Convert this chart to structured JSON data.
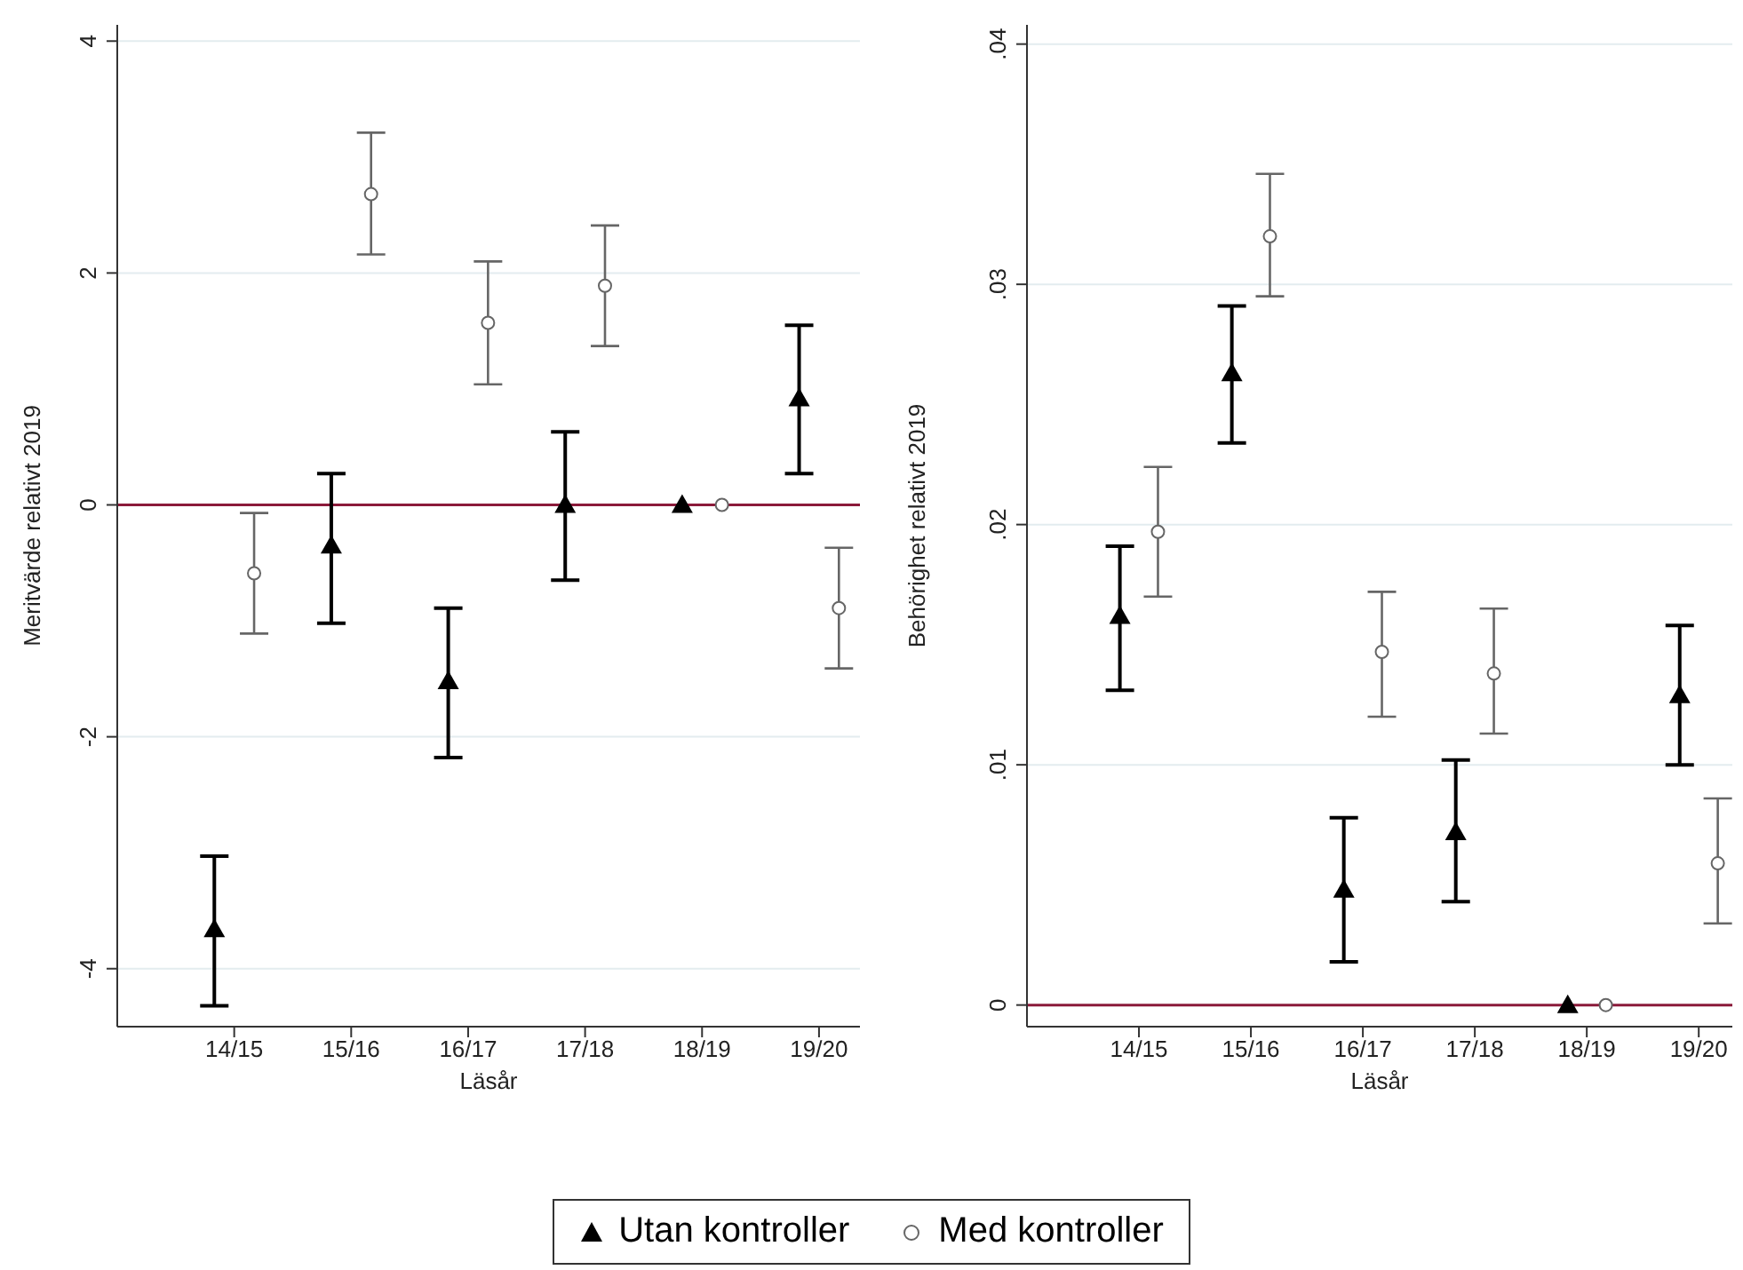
{
  "chart_data": [
    {
      "type": "scatter",
      "xlabel": "Läsår",
      "ylabel": "Meritvärde relativt 2019",
      "categories": [
        "14/15",
        "15/16",
        "16/17",
        "17/18",
        "18/19",
        "19/20"
      ],
      "ylim": [
        -4.5,
        4.14
      ],
      "yticks": [
        -4,
        -2,
        0,
        2,
        4
      ],
      "grid": "y",
      "legend": "bottom",
      "ref_lines": [
        {
          "axis": "y",
          "value": 0,
          "color": "#8b1a3a"
        }
      ],
      "series": [
        {
          "name": "Utan kontroller",
          "color": "#000000",
          "marker": "triangle",
          "values": [
            -3.66,
            -0.35,
            -1.52,
            0,
            0,
            0.92
          ],
          "errors": [
            [
              -4.32,
              -3.03
            ],
            [
              -1.02,
              0.27
            ],
            [
              -2.18,
              -0.89
            ],
            [
              -0.65,
              0.63
            ],
            null,
            [
              0.27,
              1.55
            ]
          ]
        },
        {
          "name": "Med kontroller",
          "color": "#666666",
          "marker": "circle",
          "values": [
            -0.59,
            2.68,
            1.57,
            1.89,
            0,
            -0.89
          ],
          "errors": [
            [
              -1.11,
              -0.07
            ],
            [
              2.16,
              3.21
            ],
            [
              1.04,
              2.1
            ],
            [
              1.37,
              2.41
            ],
            null,
            [
              -1.41,
              -0.37
            ]
          ]
        }
      ]
    },
    {
      "type": "scatter",
      "xlabel": "Läsår",
      "ylabel": "Behörighet relativt 2019",
      "categories": [
        "14/15",
        "15/16",
        "16/17",
        "17/18",
        "18/19",
        "19/20"
      ],
      "ylim": [
        -0.0009,
        0.0408
      ],
      "yticks": [
        {
          "value": 0,
          "label": "0"
        },
        {
          "value": 0.01,
          "label": ".01"
        },
        {
          "value": 0.02,
          "label": ".02"
        },
        {
          "value": 0.03,
          "label": ".03"
        },
        {
          "value": 0.04,
          "label": ".04"
        }
      ],
      "grid": "y",
      "ref_lines": [
        {
          "axis": "y",
          "value": 0,
          "color": "#8b1a3a"
        }
      ],
      "series": [
        {
          "color": "#000000",
          "marker": "triangle",
          "values": [
            0.0162,
            0.0263,
            0.0048,
            0.0072,
            0,
            0.0129
          ],
          "errors": [
            [
              0.0131,
              0.0191
            ],
            [
              0.0234,
              0.0291
            ],
            [
              0.0018,
              0.0078
            ],
            [
              0.0043,
              0.0102
            ],
            null,
            [
              0.01,
              0.0158
            ]
          ]
        },
        {
          "color": "#666666",
          "marker": "circle",
          "values": [
            0.0197,
            0.032,
            0.0147,
            0.0138,
            0,
            0.0059
          ],
          "errors": [
            [
              0.017,
              0.0224
            ],
            [
              0.0295,
              0.0346
            ],
            [
              0.012,
              0.0172
            ],
            [
              0.0113,
              0.0165
            ],
            null,
            [
              0.0034,
              0.0086
            ]
          ]
        }
      ]
    }
  ]
}
